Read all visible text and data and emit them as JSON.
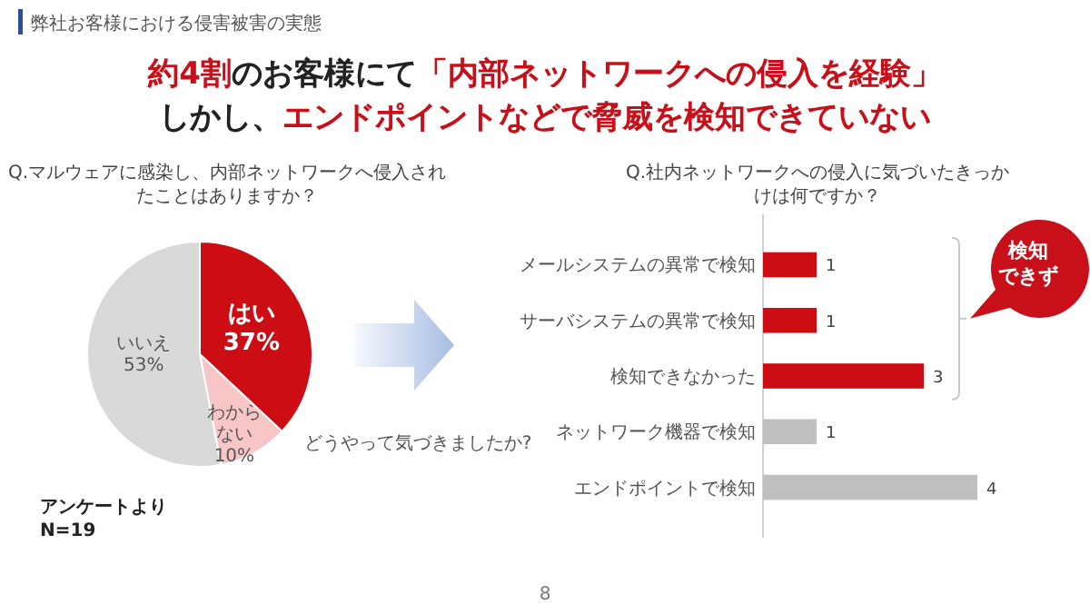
{
  "chart_data": [
    {
      "type": "other",
      "title": "弊社お客様における侵害被害の実態",
      "annotations": [
        "約4割",
        "のお客様にて",
        "「内部ネットワークへの侵入を経験」",
        "しかし、",
        "エンドポイントなどで脅威を検知できていない",
        "8"
      ]
    },
    {
      "type": "pie",
      "title": "Q.マルウェアに感染し、内部ネットワークへ侵入されたことはありますか？",
      "categories": [
        "はい",
        "わからない",
        "いいえ"
      ],
      "values": [
        37,
        10,
        53
      ],
      "colors": [
        "#cc0e14",
        "#f9c6c8",
        "#d9d9d9"
      ],
      "value_labels": [
        "37%",
        "10%",
        "53%"
      ],
      "annotations": [
        "どうやって気づきましたか?",
        "アンケートより",
        "N=19"
      ]
    },
    {
      "type": "bar",
      "orientation": "horizontal",
      "title": "Q.社内ネットワークへの侵入に気づいたきっかけは何ですか？",
      "categories": [
        "メールシステムの異常で検知",
        "サーバシステムの異常で検知",
        "検知できなかった",
        "ネットワーク機器で検知",
        "エンドポイントで検知"
      ],
      "values": [
        1,
        1,
        3,
        1,
        4
      ],
      "colors": [
        "#cc0e14",
        "#cc0e14",
        "#cc0e14",
        "#bfbfbf",
        "#bfbfbf"
      ],
      "data_labels": true,
      "annotations": [
        "検知できず"
      ]
    }
  ]
}
